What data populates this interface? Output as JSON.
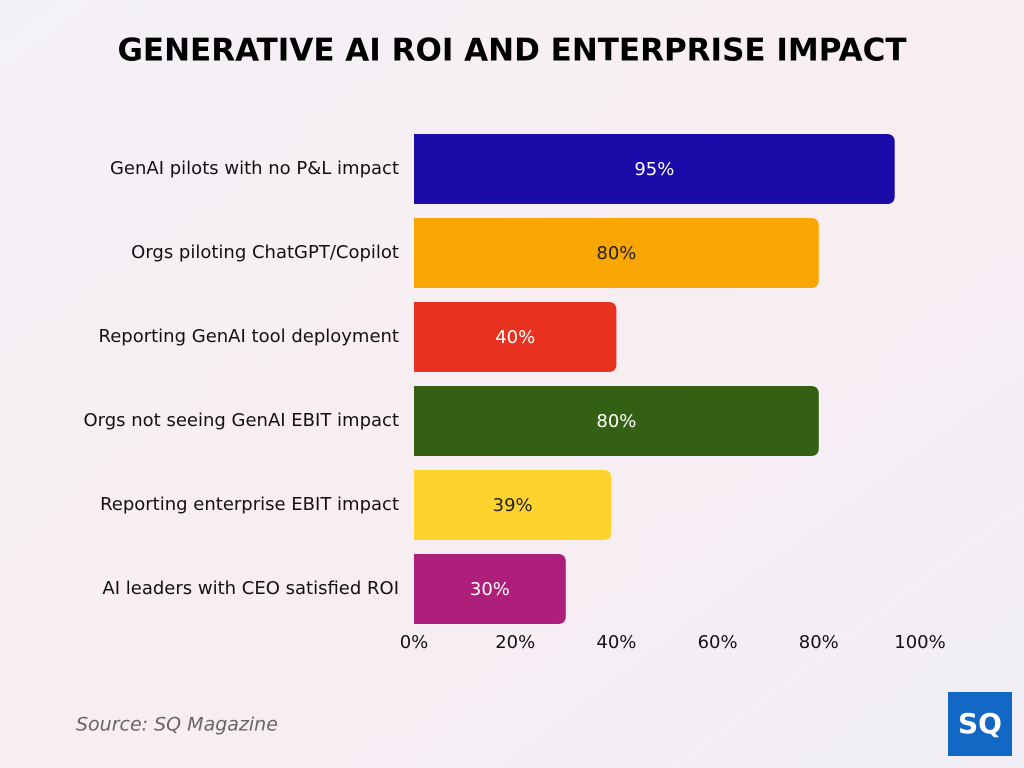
{
  "chart_data": {
    "type": "bar",
    "orientation": "horizontal",
    "title": "GENERATIVE AI ROI AND ENTERPRISE IMPACT",
    "categories": [
      "GenAI pilots with no P&L impact",
      "Orgs piloting ChatGPT/Copilot",
      "Reporting GenAI tool deployment",
      "Orgs not seeing GenAI EBIT impact",
      "Reporting enterprise EBIT impact",
      "AI leaders with CEO satisfied ROI"
    ],
    "values": [
      95,
      80,
      40,
      80,
      39,
      30
    ],
    "value_labels": [
      "95%",
      "80%",
      "40%",
      "80%",
      "39%",
      "30%"
    ],
    "colors": [
      "#1a0aa8",
      "#f9a602",
      "#e8321f",
      "#336012",
      "#fed32e",
      "#ad1f7a"
    ],
    "xlim": [
      0,
      100
    ],
    "xticks": [
      {
        "value": 0,
        "label": "0%"
      },
      {
        "value": 20,
        "label": "20%"
      },
      {
        "value": 40,
        "label": "40%"
      },
      {
        "value": 60,
        "label": "60%"
      },
      {
        "value": 80,
        "label": "80%"
      },
      {
        "value": 100,
        "label": "100%"
      }
    ],
    "grid": false,
    "source": "Source: SQ Magazine",
    "logo": "SQ"
  }
}
